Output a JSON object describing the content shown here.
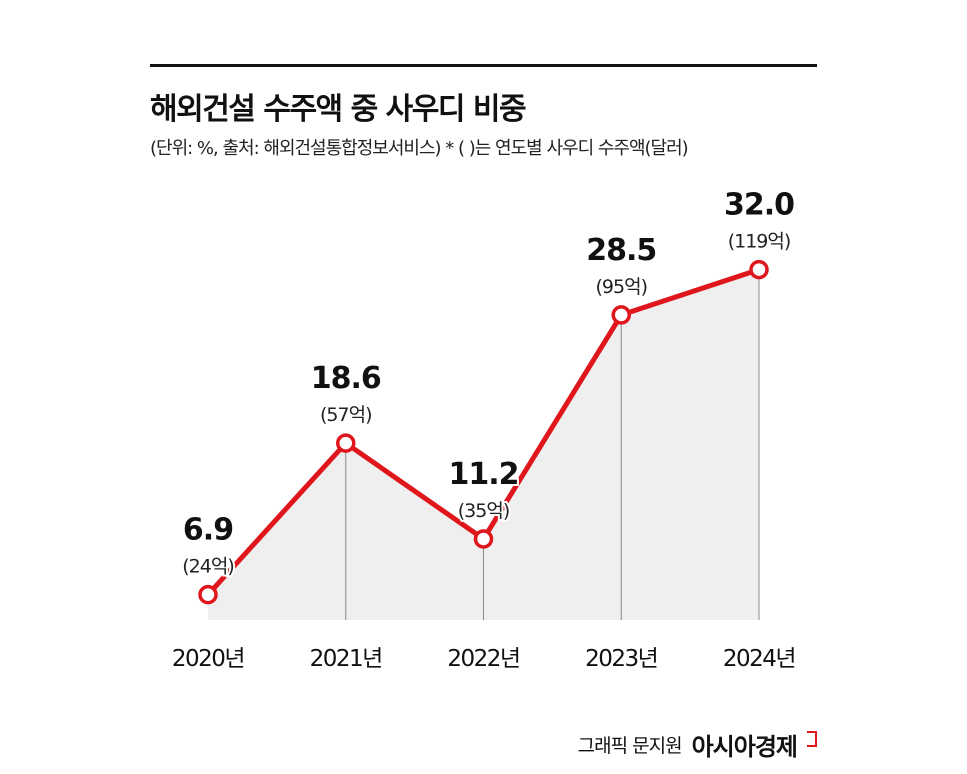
{
  "title": "해외건설 수주액 중 사우디 비중",
  "subtitle": "(단위: %, 출처: 해외건설통합정보서비스)  * ( )는 연도별 사우디 수주액(달러)",
  "credit": {
    "graphic": "그래픽 문지원",
    "brand": "아시아경제"
  },
  "colors": {
    "line": "#e0161d",
    "area": "#efefef"
  },
  "chart_data": {
    "type": "line",
    "categories": [
      "2020년",
      "2021년",
      "2022년",
      "2023년",
      "2024년"
    ],
    "values": [
      6.9,
      18.6,
      11.2,
      28.5,
      32.0
    ],
    "value_labels": [
      "6.9",
      "18.6",
      "11.2",
      "28.5",
      "32.0"
    ],
    "amount_labels": [
      "(24억)",
      "(57억)",
      "(35억)",
      "(95억)",
      "(119억)"
    ],
    "unit": "%",
    "area_fill": true,
    "grid": false
  }
}
